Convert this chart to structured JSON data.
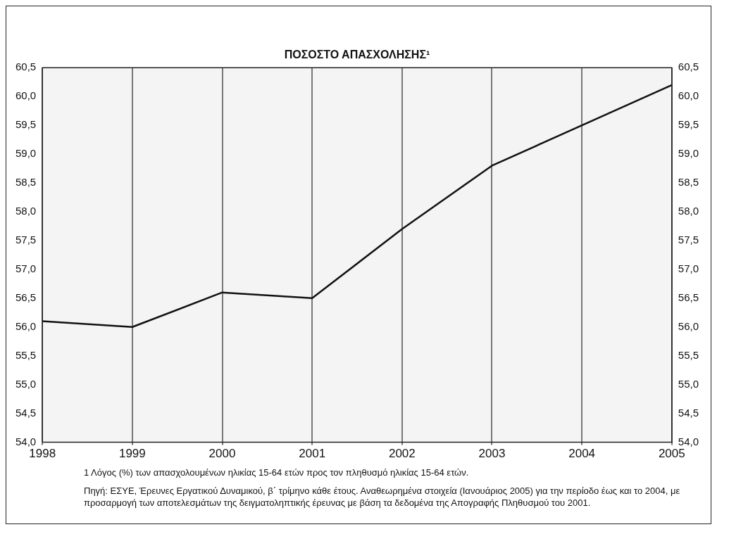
{
  "chart_data": {
    "type": "line",
    "title": "ΠΟΣΟΣΤΟ ΑΠΑΣΧΟΛΗΣΗΣ¹",
    "categories": [
      "1998",
      "1999",
      "2000",
      "2001",
      "2002",
      "2003",
      "2004",
      "2005"
    ],
    "series": [
      {
        "color": "#111111",
        "values": [
          56.1,
          56.0,
          56.6,
          56.5,
          57.7,
          58.8,
          59.5,
          60.2
        ]
      }
    ],
    "ylim": [
      54,
      60.5
    ],
    "yticks": [
      {
        "value": 54,
        "label": "54,0"
      },
      {
        "value": 54.5,
        "label": "54,5"
      },
      {
        "value": 55,
        "label": "55,0"
      },
      {
        "value": 55.5,
        "label": "55,5"
      },
      {
        "value": 56,
        "label": "56,0"
      },
      {
        "value": 56.5,
        "label": "56,5"
      },
      {
        "value": 57,
        "label": "57,0"
      },
      {
        "value": 57.5,
        "label": "57,5"
      },
      {
        "value": 58,
        "label": "58,0"
      },
      {
        "value": 58.5,
        "label": "58,5"
      },
      {
        "value": 59,
        "label": "59,0"
      },
      {
        "value": 59.5,
        "label": "59,5"
      },
      {
        "value": 60,
        "label": "60,0"
      },
      {
        "value": 60.5,
        "label": "60,5"
      }
    ],
    "y2lim": [
      54,
      60.5
    ],
    "y2ticks": [
      {
        "value": 54,
        "label": "54,0"
      },
      {
        "value": 54.5,
        "label": "54,5"
      },
      {
        "value": 55,
        "label": "55,0"
      },
      {
        "value": 55.5,
        "label": "55,5"
      },
      {
        "value": 56,
        "label": "56,0"
      },
      {
        "value": 56.5,
        "label": "56,5"
      },
      {
        "value": 57,
        "label": "57,0"
      },
      {
        "value": 57.5,
        "label": "57,5"
      },
      {
        "value": 58,
        "label": "58,0"
      },
      {
        "value": 58.5,
        "label": "58,5"
      },
      {
        "value": 59,
        "label": "59,0"
      },
      {
        "value": 59.5,
        "label": "59,5"
      },
      {
        "value": 60,
        "label": "60,0"
      },
      {
        "value": 60.5,
        "label": "60,5"
      }
    ],
    "grid": "x",
    "marker": "none",
    "line_style": "solid",
    "annotations": [
      "1 Λόγος (%) των απασχολουμένων ηλικίας 15-64 ετών προς τον πληθυσμό ηλικίας 15-64 ετών.",
      "Πηγή: ΕΣΥΕ, Έρευνες Εργατικού Δυναμικού, β΄ τρίμηνο κάθε έτους. Αναθεωρημένα στοιχεία (Ιανουάριος 2005) για την περίοδο έως και το 2004, με προσαρμογή των αποτελεσμάτων της δειγματοληπτικής έρευνας με βάση τα δεδομένα της Απογραφής Πληθυσμού του 2001."
    ]
  }
}
